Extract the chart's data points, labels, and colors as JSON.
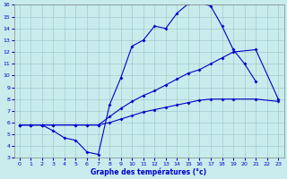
{
  "xlabel": "Graphe des températures (°c)",
  "xlim": [
    -0.5,
    23.5
  ],
  "ylim": [
    3,
    16
  ],
  "yticks": [
    3,
    4,
    5,
    6,
    7,
    8,
    9,
    10,
    11,
    12,
    13,
    14,
    15,
    16
  ],
  "xticks": [
    0,
    1,
    2,
    3,
    4,
    5,
    6,
    7,
    8,
    9,
    10,
    11,
    12,
    13,
    14,
    15,
    16,
    17,
    18,
    19,
    20,
    21,
    22,
    23
  ],
  "bg_color": "#c8ecec",
  "grid_color": "#a0cccc",
  "line_color": "#0000cc",
  "line1_x": [
    0,
    1,
    2,
    3,
    4,
    5,
    6,
    7,
    8,
    9,
    10,
    11,
    12,
    13,
    14,
    15,
    16,
    17,
    18,
    19,
    20,
    21,
    22,
    23
  ],
  "line1_y": [
    5.8,
    5.8,
    5.8,
    5.3,
    4.7,
    4.5,
    3.5,
    3.3,
    7.5,
    9.8,
    12.5,
    13.0,
    14.2,
    14.0,
    15.3,
    16.1,
    16.2,
    15.9,
    14.2,
    12.2,
    11.0,
    9.5,
    null,
    null
  ],
  "line2_x": [
    0,
    1,
    2,
    3,
    5,
    6,
    7,
    8,
    9,
    10,
    11,
    12,
    13,
    14,
    15,
    16,
    17,
    18,
    19,
    21,
    23
  ],
  "line2_y": [
    5.8,
    5.8,
    5.8,
    5.8,
    5.8,
    5.8,
    5.8,
    6.5,
    7.2,
    7.8,
    8.3,
    8.7,
    9.2,
    9.7,
    10.2,
    10.5,
    11.0,
    11.5,
    12.0,
    12.2,
    8.0
  ],
  "line3_x": [
    0,
    1,
    2,
    3,
    5,
    6,
    7,
    8,
    9,
    10,
    11,
    12,
    13,
    14,
    15,
    16,
    17,
    18,
    19,
    21,
    23
  ],
  "line3_y": [
    5.8,
    5.8,
    5.8,
    5.8,
    5.8,
    5.8,
    5.8,
    6.0,
    6.3,
    6.6,
    6.9,
    7.1,
    7.3,
    7.5,
    7.7,
    7.9,
    8.0,
    8.0,
    8.0,
    8.0,
    7.8
  ]
}
